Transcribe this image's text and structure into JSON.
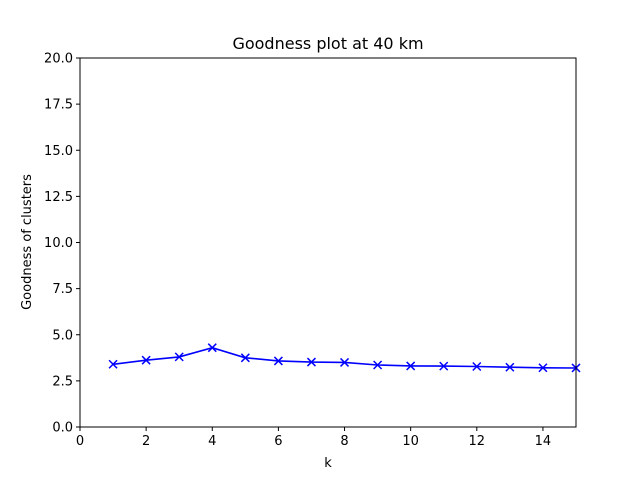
{
  "chart_data": {
    "type": "line",
    "title": "Goodness plot at 40 km",
    "xlabel": "k",
    "ylabel": "Goodness of clusters",
    "xlim": [
      0,
      15
    ],
    "ylim": [
      0,
      20
    ],
    "x_ticks": [
      "0",
      "2",
      "4",
      "6",
      "8",
      "10",
      "12",
      "14"
    ],
    "y_ticks": [
      "0.0",
      "2.5",
      "5.0",
      "7.5",
      "10.0",
      "12.5",
      "15.0",
      "17.5",
      "20.0"
    ],
    "grid": false,
    "series": [
      {
        "color": "#0000ff",
        "marker": "x",
        "x": [
          1,
          2,
          3,
          4,
          5,
          6,
          7,
          8,
          9,
          10,
          11,
          12,
          13,
          14,
          15
        ],
        "y": [
          3.4,
          3.62,
          3.8,
          4.3,
          3.75,
          3.58,
          3.52,
          3.5,
          3.36,
          3.31,
          3.3,
          3.28,
          3.24,
          3.21,
          3.2
        ]
      }
    ]
  }
}
